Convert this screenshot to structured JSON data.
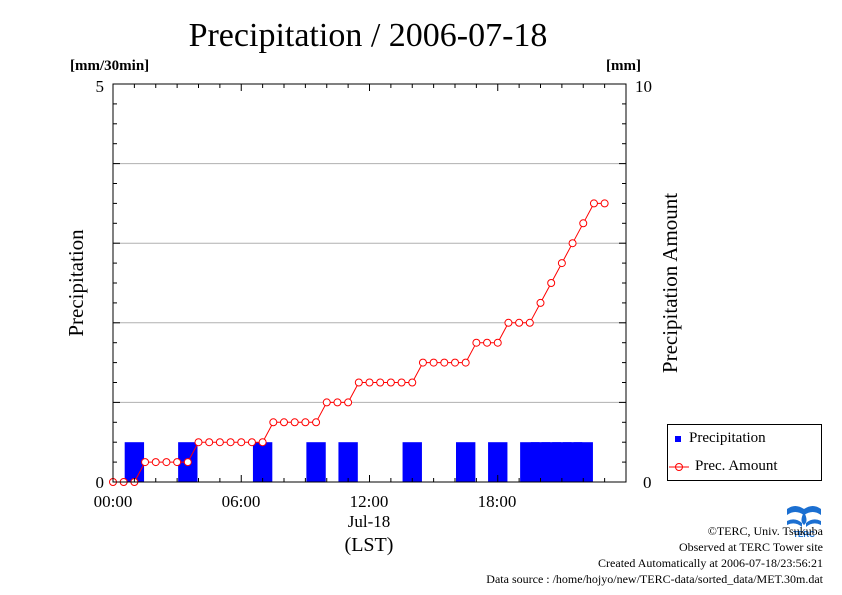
{
  "chart_data": {
    "type": "bar+line",
    "title": "Precipitation / 2006-07-18",
    "left_axis": {
      "label": "Precipitation",
      "unit": "[mm/30min]",
      "range": [
        0,
        5
      ],
      "ticks": [
        "0",
        "5"
      ]
    },
    "right_axis": {
      "label": "Precipitation Amount",
      "unit": "[mm]",
      "range": [
        0,
        10
      ],
      "ticks": [
        "0",
        "10"
      ]
    },
    "x_axis": {
      "range_hours": [
        0,
        24
      ],
      "ticks": [
        "00:00",
        "06:00",
        "12:00",
        "18:00"
      ],
      "date_label": "Jul-18",
      "timezone_label": "(LST)"
    },
    "grid": {
      "horizontal_lines": 5
    },
    "legend_position": "bottom-right",
    "series": [
      {
        "name": "Precipitation",
        "kind": "bar",
        "color": "#0000ff",
        "x_hours": [
          1.0,
          3.5,
          7.0,
          9.5,
          11.0,
          14.0,
          16.5,
          18.0,
          19.5,
          20.0,
          20.5,
          21.0,
          21.5,
          22.0
        ],
        "values": [
          0.5,
          0.5,
          0.5,
          0.5,
          0.5,
          0.5,
          0.5,
          0.5,
          0.5,
          0.5,
          0.5,
          0.5,
          0.5,
          0.5
        ]
      },
      {
        "name": "Prec. Amount",
        "kind": "line",
        "color": "#ff0000",
        "x_hours": [
          0.0,
          0.5,
          1.0,
          1.5,
          2.0,
          2.5,
          3.0,
          3.5,
          4.0,
          4.5,
          5.0,
          5.5,
          6.0,
          6.5,
          7.0,
          7.5,
          8.0,
          8.5,
          9.0,
          9.5,
          10.0,
          10.5,
          11.0,
          11.5,
          12.0,
          12.5,
          13.0,
          13.5,
          14.0,
          14.5,
          15.0,
          15.5,
          16.0,
          16.5,
          17.0,
          17.5,
          18.0,
          18.5,
          19.0,
          19.5,
          20.0,
          20.5,
          21.0,
          21.5,
          22.0,
          22.5,
          23.0
        ],
        "values": [
          0,
          0,
          0,
          0.5,
          0.5,
          0.5,
          0.5,
          0.5,
          1,
          1,
          1,
          1,
          1,
          1,
          1,
          1.5,
          1.5,
          1.5,
          1.5,
          1.5,
          2,
          2,
          2,
          2.5,
          2.5,
          2.5,
          2.5,
          2.5,
          2.5,
          3,
          3,
          3,
          3,
          3,
          3.5,
          3.5,
          3.5,
          4,
          4,
          4,
          4.5,
          5,
          5.5,
          6,
          6.5,
          7,
          7
        ]
      }
    ]
  },
  "legend": {
    "items": [
      "Precipitation",
      "Prec. Amount"
    ]
  },
  "credits": {
    "copyright": "©TERC, Univ. Tsukuba",
    "observed": "Observed at TERC Tower site",
    "created": "Created Automatically at 2006-07-18/23:56:21",
    "source": "Data source : /home/hojyo/new/TERC-data/sorted_data/MET.30m.dat",
    "logo_text": "TERC"
  }
}
